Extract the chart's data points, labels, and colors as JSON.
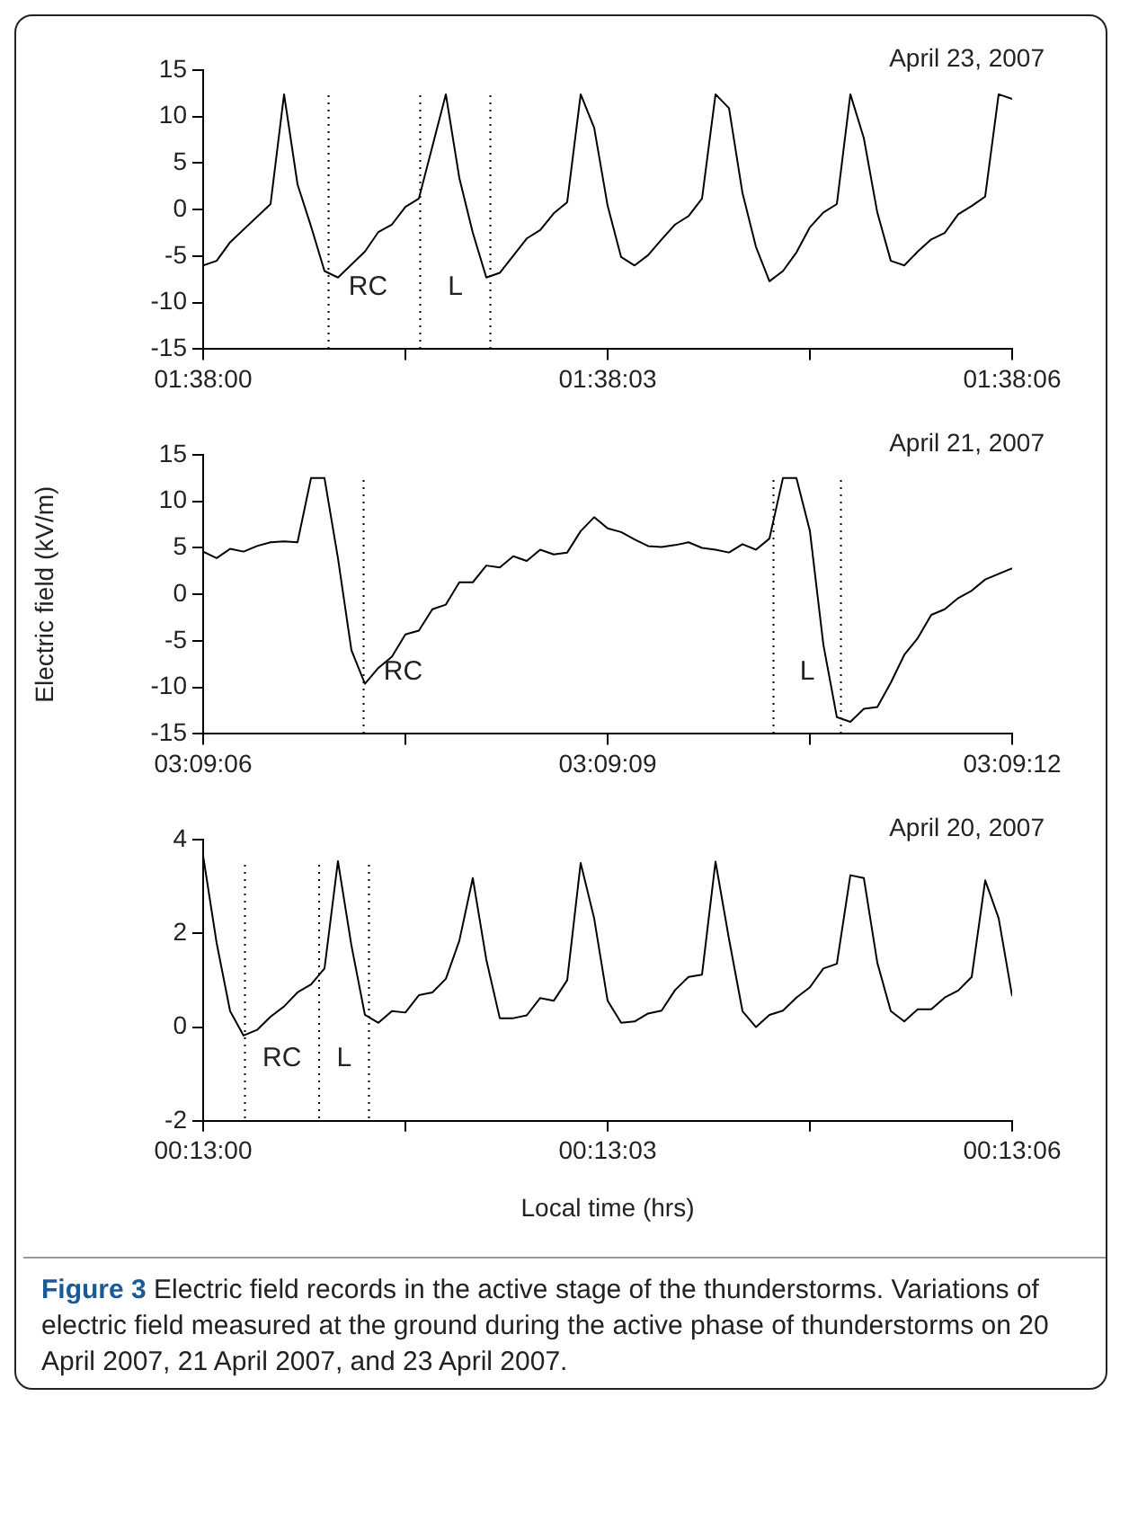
{
  "chart_data": [
    {
      "type": "line",
      "title": "April 23, 2007",
      "marker": "none",
      "line_style": "solid",
      "grid": false,
      "legend": false,
      "x": [
        1.6333333,
        1.6333611,
        1.6333889,
        1.6334722,
        1.6335,
        1.6335278,
        1.6335556,
        1.6335833,
        1.6336111,
        1.6336667,
        1.6336944,
        1.6337222,
        1.63375,
        1.6337778,
        1.6338333,
        1.6338611,
        1.6338889,
        1.6339167,
        1.6339444,
        1.634,
        1.6340278,
        1.6340556,
        1.6340833,
        1.6341111,
        1.6341389,
        1.6341667,
        1.6341944,
        1.6342222,
        1.63425,
        1.6342778,
        1.6343056,
        1.6343333,
        1.6343611,
        1.6343889,
        1.6344167,
        1.6344444,
        1.6344722,
        1.6345,
        1.6345278,
        1.6345556,
        1.6345833,
        1.6346111,
        1.6346389,
        1.6346667,
        1.6346944,
        1.6347222,
        1.63475,
        1.6347778,
        1.6348056,
        1.6348333,
        1.6348611,
        1.6348889,
        1.6349167,
        1.6349444,
        1.6349722,
        1.635
      ],
      "series": [
        {
          "color": "#000000",
          "values": [
            -6.0,
            -5.5,
            -3.5,
            0.6,
            12.4,
            2.7,
            -1.8,
            -6.6,
            -7.3,
            -4.5,
            -2.4,
            -1.6,
            0.3,
            1.2,
            12.4,
            3.4,
            -2.5,
            -7.3,
            -6.8,
            -3.1,
            -2.2,
            -0.4,
            0.8,
            12.4,
            8.8,
            0.4,
            -5.1,
            -6.0,
            -4.9,
            -3.2,
            -1.6,
            -0.7,
            1.2,
            12.4,
            10.9,
            1.8,
            -4.0,
            -7.7,
            -6.6,
            -4.6,
            -1.9,
            -0.3,
            0.6,
            12.4,
            7.7,
            -0.3,
            -5.5,
            -6.0,
            -4.5,
            -3.2,
            -2.5,
            -0.5,
            0.4,
            1.4,
            12.4,
            11.9
          ]
        }
      ],
      "xlim": [
        1.6333333,
        1.635
      ],
      "xticks": [
        {
          "value": 1.6333333,
          "label": "01:38:00"
        },
        {
          "value": 1.63375,
          "label": null
        },
        {
          "value": 1.6341667,
          "label": "01:38:03"
        },
        {
          "value": 1.6345833,
          "label": null
        },
        {
          "value": 1.635,
          "label": "01:38:06"
        }
      ],
      "ylim": [
        -15,
        15
      ],
      "yticks": [
        -15,
        -10,
        -5,
        0,
        5,
        10,
        15
      ],
      "ref_lines": [
        {
          "axis": "x",
          "value": 1.6335916,
          "label": "RC",
          "line_style": "dotted",
          "color": "#000000"
        },
        {
          "axis": "x",
          "value": 1.6337805,
          "label": "L",
          "line_style": "dotted",
          "color": "#000000"
        },
        {
          "axis": "x",
          "value": 1.633925,
          "line_style": "dotted",
          "color": "#000000"
        }
      ]
    },
    {
      "type": "line",
      "title": "April 21, 2007",
      "ylabel": "Electric field (kV/m)",
      "marker": "none",
      "line_style": "solid",
      "grid": false,
      "legend": false,
      "x": [
        3.1516667,
        3.1516944,
        3.1517222,
        3.15175,
        3.1517778,
        3.1518056,
        3.1518333,
        3.1518611,
        3.1518889,
        3.1519167,
        3.1519444,
        3.1519722,
        3.152,
        3.1520278,
        3.1520556,
        3.1520833,
        3.1521111,
        3.1521389,
        3.1521667,
        3.1521944,
        3.1522222,
        3.15225,
        3.1522778,
        3.1523056,
        3.1523333,
        3.1523611,
        3.1523889,
        3.1524167,
        3.1524444,
        3.1524722,
        3.1525,
        3.1525278,
        3.1525556,
        3.1525833,
        3.1526111,
        3.1526389,
        3.1526667,
        3.1526944,
        3.1527222,
        3.15275,
        3.1527778,
        3.1528056,
        3.1528333,
        3.1528611,
        3.1528889,
        3.1529167,
        3.1529444,
        3.1529722,
        3.153,
        3.1530278,
        3.1530556,
        3.1530833,
        3.1531111,
        3.1531389,
        3.1531667,
        3.1531944,
        3.1532222,
        3.15325,
        3.1532778,
        3.1533056,
        3.1533333
      ],
      "series": [
        {
          "color": "#000000",
          "values": [
            4.6,
            3.9,
            4.9,
            4.6,
            5.2,
            5.6,
            5.7,
            5.6,
            12.5,
            12.5,
            3.9,
            -6.0,
            -9.6,
            -7.9,
            -6.7,
            -4.3,
            -3.9,
            -1.6,
            -1.1,
            1.3,
            1.3,
            3.1,
            2.9,
            4.1,
            3.6,
            4.8,
            4.3,
            4.5,
            6.8,
            8.3,
            7.1,
            6.7,
            5.9,
            5.2,
            5.1,
            5.3,
            5.6,
            5.0,
            4.8,
            4.5,
            5.4,
            4.8,
            6.0,
            12.5,
            12.5,
            6.8,
            -5.4,
            -13.2,
            -13.7,
            -12.3,
            -12.1,
            -9.5,
            -6.5,
            -4.7,
            -2.2,
            -1.6,
            -0.4,
            0.4,
            1.6,
            2.2,
            2.8
          ]
        }
      ],
      "xlim": [
        3.1516667,
        3.1533333
      ],
      "xticks": [
        {
          "value": 3.1516667,
          "label": "03:09:06"
        },
        {
          "value": 3.1520833,
          "label": null
        },
        {
          "value": 3.1525,
          "label": "03:09:09"
        },
        {
          "value": 3.1529167,
          "label": null
        },
        {
          "value": 3.1533333,
          "label": "03:09:12"
        }
      ],
      "ylim": [
        -15,
        15
      ],
      "yticks": [
        -15,
        -10,
        -5,
        0,
        5,
        10,
        15
      ],
      "ref_lines": [
        {
          "axis": "x",
          "value": 3.1519973,
          "label": "RC",
          "line_style": "dotted",
          "color": "#000000"
        },
        {
          "axis": "x",
          "value": 3.1528417,
          "label": "L",
          "line_style": "dotted",
          "color": "#000000"
        },
        {
          "axis": "x",
          "value": 3.1529806,
          "line_style": "dotted",
          "color": "#000000"
        }
      ]
    },
    {
      "type": "line",
      "title": "April 20, 2007",
      "xlabel": "Local time (hrs)",
      "marker": "none",
      "line_style": "solid",
      "grid": false,
      "legend": false,
      "x": [
        0.2166667,
        0.2166944,
        0.2167222,
        0.21675,
        0.2167778,
        0.2168056,
        0.2168333,
        0.2168611,
        0.2168889,
        0.2169167,
        0.2169444,
        0.2169722,
        0.217,
        0.2170278,
        0.2170556,
        0.2170833,
        0.2171111,
        0.2171389,
        0.2171667,
        0.2171944,
        0.2172222,
        0.21725,
        0.2172778,
        0.2173056,
        0.2173333,
        0.2173611,
        0.2173889,
        0.2174167,
        0.2174444,
        0.2174722,
        0.2175,
        0.2175278,
        0.2175556,
        0.2175833,
        0.2176111,
        0.2176389,
        0.2176667,
        0.2176944,
        0.2177222,
        0.21775,
        0.2177778,
        0.2178056,
        0.2178333,
        0.2178611,
        0.2178889,
        0.2179167,
        0.2179444,
        0.2179722,
        0.218,
        0.2180278,
        0.2180556,
        0.2180833,
        0.2181111,
        0.2181389,
        0.2181667,
        0.2181944,
        0.2182222,
        0.21825,
        0.2182778,
        0.2183056,
        0.2183333
      ],
      "series": [
        {
          "color": "#000000",
          "values": [
            3.65,
            1.8,
            0.34,
            -0.18,
            -0.06,
            0.22,
            0.44,
            0.74,
            0.91,
            1.25,
            3.54,
            1.74,
            0.26,
            0.09,
            0.34,
            0.31,
            0.68,
            0.74,
            1.03,
            1.84,
            3.18,
            1.44,
            0.19,
            0.19,
            0.25,
            0.62,
            0.56,
            1.0,
            3.5,
            2.32,
            0.56,
            0.09,
            0.12,
            0.29,
            0.35,
            0.79,
            1.07,
            1.12,
            3.53,
            1.88,
            0.34,
            0.0,
            0.26,
            0.35,
            0.63,
            0.85,
            1.25,
            1.35,
            3.24,
            3.18,
            1.37,
            0.34,
            0.12,
            0.38,
            0.38,
            0.63,
            0.78,
            1.07,
            3.13,
            2.32,
            0.66
          ]
        }
      ],
      "xlim": [
        0.2166667,
        0.2183333
      ],
      "xticks": [
        {
          "value": 0.2166667,
          "label": "00:13:00"
        },
        {
          "value": 0.2170833,
          "label": null
        },
        {
          "value": 0.2175,
          "label": "00:13:03"
        },
        {
          "value": 0.2179167,
          "label": null
        },
        {
          "value": 0.2183333,
          "label": "00:13:06"
        }
      ],
      "ylim": [
        -2,
        4
      ],
      "yticks": [
        -2,
        0,
        2,
        4
      ],
      "ref_lines": [
        {
          "axis": "x",
          "value": 0.2167528,
          "label": "RC",
          "line_style": "dotted",
          "color": "#000000"
        },
        {
          "axis": "x",
          "value": 0.2169056,
          "label": "L",
          "line_style": "dotted",
          "color": "#000000"
        },
        {
          "axis": "x",
          "value": 0.2170084,
          "line_style": "dotted",
          "color": "#000000"
        }
      ],
      "annotations": [
        "Figure 3",
        "Electric field records in the active stage of the thunderstorms. Variations of electric field measured at the ground during the active phase of thunderstorms on 20 April 2007, 21 April 2007, and 23 April 2007."
      ]
    }
  ]
}
